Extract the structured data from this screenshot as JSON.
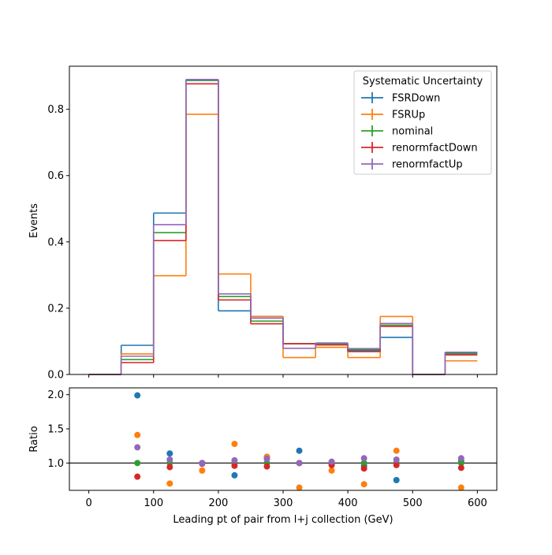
{
  "chart_data": [
    {
      "type": "histogram",
      "panel": "main",
      "xlabel": "",
      "ylabel": "Events",
      "xlim": [
        -30,
        630
      ],
      "ylim": [
        0,
        0.93
      ],
      "yticks": [
        0.0,
        0.2,
        0.4,
        0.6,
        0.8
      ],
      "ytick_labels": [
        "0.0",
        "0.2",
        "0.4",
        "0.6",
        "0.8"
      ],
      "bin_edges": [
        0,
        50,
        100,
        150,
        200,
        250,
        300,
        350,
        400,
        450,
        500,
        550,
        600
      ],
      "legend": {
        "title": "Systematic Uncertainty",
        "placement": "top-right"
      },
      "series": [
        {
          "name": "FSRDown",
          "color": "#1f77b4",
          "values": [
            0.0,
            0.088,
            0.487,
            0.887,
            0.192,
            0.175,
            0.093,
            0.093,
            0.072,
            0.112,
            0.0,
            0.065
          ]
        },
        {
          "name": "FSRUp",
          "color": "#ff7f0e",
          "values": [
            0.0,
            0.062,
            0.298,
            0.785,
            0.303,
            0.175,
            0.051,
            0.082,
            0.051,
            0.175,
            0.0,
            0.041
          ]
        },
        {
          "name": "nominal",
          "color": "#2ca02c",
          "values": [
            0.0,
            0.045,
            0.428,
            0.888,
            0.235,
            0.161,
            0.093,
            0.092,
            0.075,
            0.149,
            0.0,
            0.063
          ]
        },
        {
          "name": "renormfactDown",
          "color": "#d62728",
          "values": [
            0.0,
            0.036,
            0.404,
            0.877,
            0.225,
            0.153,
            0.093,
            0.089,
            0.069,
            0.145,
            0.0,
            0.059
          ]
        },
        {
          "name": "renormfactUp",
          "color": "#9467bd",
          "values": [
            0.0,
            0.055,
            0.452,
            0.89,
            0.243,
            0.17,
            0.079,
            0.095,
            0.078,
            0.154,
            0.0,
            0.067
          ]
        }
      ]
    },
    {
      "type": "scatter",
      "panel": "ratio",
      "xlabel": "Leading pt of pair from l+j collection (GeV)",
      "ylabel": "Ratio",
      "xlim": [
        -30,
        630
      ],
      "ylim": [
        0.6,
        2.1
      ],
      "xticks": [
        0,
        100,
        200,
        300,
        400,
        500,
        600
      ],
      "xtick_labels": [
        "0",
        "100",
        "200",
        "300",
        "400",
        "500",
        "600"
      ],
      "yticks": [
        1.0,
        1.5,
        2.0
      ],
      "ytick_labels": [
        "1.0",
        "1.5",
        "2.0"
      ],
      "reference_line": 1.0,
      "x": [
        75,
        125,
        175,
        225,
        275,
        325,
        375,
        425,
        475,
        575
      ],
      "series": [
        {
          "name": "FSRDown",
          "color": "#1f77b4",
          "values": [
            1.99,
            1.14,
            1.0,
            0.82,
            1.09,
            1.18,
            0.98,
            0.96,
            0.75,
            1.03
          ]
        },
        {
          "name": "FSRUp",
          "color": "#ff7f0e",
          "values": [
            1.41,
            0.7,
            0.89,
            1.28,
            1.09,
            0.64,
            0.89,
            0.69,
            1.18,
            0.64
          ]
        },
        {
          "name": "nominal",
          "color": "#2ca02c",
          "values": [
            1.0,
            1.0,
            1.0,
            1.0,
            1.0,
            1.0,
            1.0,
            1.0,
            1.0,
            1.0
          ]
        },
        {
          "name": "renormfactDown",
          "color": "#d62728",
          "values": [
            0.8,
            0.94,
            0.99,
            0.96,
            0.95,
            1.0,
            0.97,
            0.92,
            0.97,
            0.93
          ]
        },
        {
          "name": "renormfactUp",
          "color": "#9467bd",
          "values": [
            1.23,
            1.05,
            1.0,
            1.04,
            1.06,
            1.0,
            1.02,
            1.07,
            1.05,
            1.07
          ]
        }
      ]
    }
  ]
}
